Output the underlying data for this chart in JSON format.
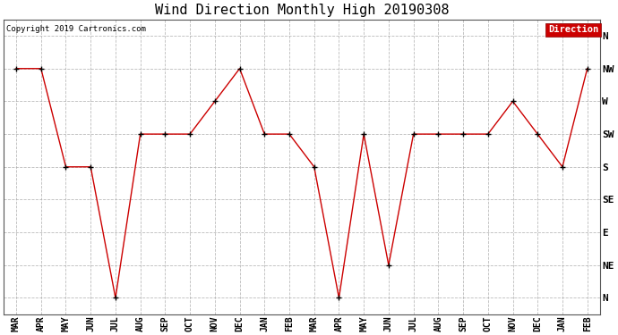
{
  "title": "Wind Direction Monthly High 20190308",
  "copyright": "Copyright 2019 Cartronics.com",
  "legend_label": "Direction",
  "x_labels": [
    "MAR",
    "APR",
    "MAY",
    "JUN",
    "JUL",
    "AUG",
    "SEP",
    "OCT",
    "NOV",
    "DEC",
    "JAN",
    "FEB",
    "MAR",
    "APR",
    "MAY",
    "JUN",
    "JUL",
    "AUG",
    "SEP",
    "OCT",
    "NOV",
    "DEC",
    "JAN",
    "FEB"
  ],
  "y_labels": [
    "N",
    "NW",
    "W",
    "SW",
    "S",
    "SE",
    "E",
    "NE",
    "N"
  ],
  "y_values": [
    9,
    8,
    7,
    6,
    5,
    4,
    3,
    2,
    1
  ],
  "direction_values": [
    8,
    8,
    5,
    5,
    1,
    6,
    6,
    6,
    7,
    8,
    6,
    6,
    5,
    1,
    6,
    2,
    6,
    6,
    6,
    6,
    7,
    6,
    5,
    8
  ],
  "line_color": "#cc0000",
  "marker_color": "#000000",
  "bg_color": "#ffffff",
  "grid_color": "#aaaaaa",
  "title_fontsize": 11,
  "legend_bg": "#cc0000",
  "legend_text_color": "#ffffff"
}
